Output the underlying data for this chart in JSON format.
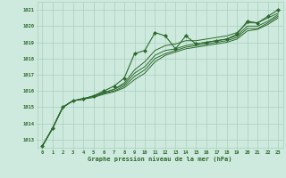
{
  "bg_color": "#ceeade",
  "grid_color": "#aacfbc",
  "line_color": "#2d6a2d",
  "marker_color": "#2d6a2d",
  "xlabel": "Graphe pression niveau de la mer (hPa)",
  "title_color": "#2d6a2d",
  "xlim": [
    -0.5,
    23.5
  ],
  "ylim": [
    1012.5,
    1021.5
  ],
  "yticks": [
    1013,
    1014,
    1015,
    1016,
    1017,
    1018,
    1019,
    1020,
    1021
  ],
  "xticks": [
    0,
    1,
    2,
    3,
    4,
    5,
    6,
    7,
    8,
    9,
    10,
    11,
    12,
    13,
    14,
    15,
    16,
    17,
    18,
    19,
    20,
    21,
    22,
    23
  ],
  "series": [
    [
      1012.6,
      1013.7,
      1015.0,
      1015.4,
      1015.5,
      1015.7,
      1016.0,
      1016.3,
      1016.8,
      1018.3,
      1018.5,
      1019.6,
      1019.4,
      1018.6,
      1019.4,
      1018.9,
      1019.0,
      1019.1,
      1019.2,
      1019.5,
      1020.3,
      1020.2,
      1020.6,
      1021.0
    ],
    [
      1012.6,
      1013.7,
      1015.0,
      1015.4,
      1015.5,
      1015.7,
      1015.9,
      1016.1,
      1016.5,
      1017.3,
      1017.8,
      1018.5,
      1018.8,
      1018.9,
      1019.1,
      1019.1,
      1019.2,
      1019.3,
      1019.4,
      1019.6,
      1020.2,
      1020.2,
      1020.5,
      1020.8
    ],
    [
      1012.6,
      1013.7,
      1015.0,
      1015.4,
      1015.5,
      1015.7,
      1015.9,
      1016.1,
      1016.4,
      1017.1,
      1017.5,
      1018.2,
      1018.5,
      1018.6,
      1018.8,
      1018.9,
      1019.0,
      1019.1,
      1019.2,
      1019.4,
      1020.0,
      1020.0,
      1020.3,
      1020.7
    ],
    [
      1012.6,
      1013.7,
      1015.0,
      1015.4,
      1015.55,
      1015.65,
      1015.85,
      1016.0,
      1016.3,
      1016.9,
      1017.3,
      1018.0,
      1018.3,
      1018.5,
      1018.7,
      1018.8,
      1018.9,
      1019.0,
      1019.1,
      1019.3,
      1019.85,
      1019.85,
      1020.2,
      1020.6
    ],
    [
      1012.6,
      1013.7,
      1015.0,
      1015.4,
      1015.5,
      1015.6,
      1015.8,
      1015.95,
      1016.2,
      1016.7,
      1017.1,
      1017.8,
      1018.2,
      1018.4,
      1018.6,
      1018.7,
      1018.8,
      1018.9,
      1019.0,
      1019.2,
      1019.7,
      1019.8,
      1020.1,
      1020.5
    ]
  ]
}
